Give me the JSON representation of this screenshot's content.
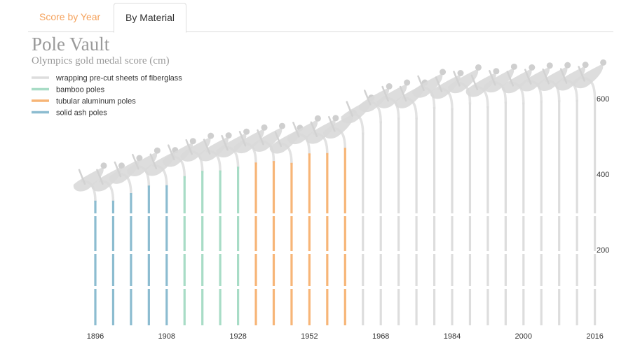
{
  "tabs": [
    {
      "label": "Score by Year",
      "active": false,
      "color": "#f5a25c"
    },
    {
      "label": "By Material",
      "active": true
    }
  ],
  "chart_data": {
    "type": "bar",
    "title": "Pole Vault",
    "subtitle": "Olympics gold medal score (cm)",
    "ylim": [
      0,
      650
    ],
    "yticks": [
      200,
      400,
      600
    ],
    "xtick_labels": [
      "1896",
      "1908",
      "1928",
      "1952",
      "1968",
      "1984",
      "2000",
      "2016"
    ],
    "legend": [
      {
        "label": "wrapping pre-cut sheets of fiberglass",
        "material": "fiberglass",
        "color": "#dddddd"
      },
      {
        "label": "bamboo poles",
        "material": "bamboo",
        "color": "#a8dcc6"
      },
      {
        "label": "tubular aluminum poles",
        "material": "aluminum",
        "color": "#f7b577"
      },
      {
        "label": "solid ash poles",
        "material": "ash",
        "color": "#8cbcd0"
      }
    ],
    "series": [
      {
        "year": 1896,
        "value": 330,
        "material": "ash"
      },
      {
        "year": 1900,
        "value": 330,
        "material": "ash"
      },
      {
        "year": 1904,
        "value": 350,
        "material": "ash"
      },
      {
        "year": 1906,
        "value": 370,
        "material": "ash"
      },
      {
        "year": 1908,
        "value": 371,
        "material": "ash"
      },
      {
        "year": 1912,
        "value": 395,
        "material": "bamboo"
      },
      {
        "year": 1920,
        "value": 409,
        "material": "bamboo"
      },
      {
        "year": 1924,
        "value": 410,
        "material": "bamboo"
      },
      {
        "year": 1928,
        "value": 420,
        "material": "bamboo"
      },
      {
        "year": 1932,
        "value": 431,
        "material": "aluminum"
      },
      {
        "year": 1936,
        "value": 435,
        "material": "aluminum"
      },
      {
        "year": 1948,
        "value": 430,
        "material": "aluminum"
      },
      {
        "year": 1952,
        "value": 455,
        "material": "aluminum"
      },
      {
        "year": 1956,
        "value": 456,
        "material": "aluminum"
      },
      {
        "year": 1960,
        "value": 470,
        "material": "aluminum"
      },
      {
        "year": 1964,
        "value": 510,
        "material": "fiberglass"
      },
      {
        "year": 1968,
        "value": 540,
        "material": "fiberglass"
      },
      {
        "year": 1972,
        "value": 550,
        "material": "fiberglass"
      },
      {
        "year": 1976,
        "value": 550,
        "material": "fiberglass"
      },
      {
        "year": 1980,
        "value": 578,
        "material": "fiberglass"
      },
      {
        "year": 1984,
        "value": 575,
        "material": "fiberglass"
      },
      {
        "year": 1988,
        "value": 590,
        "material": "fiberglass"
      },
      {
        "year": 1992,
        "value": 580,
        "material": "fiberglass"
      },
      {
        "year": 1996,
        "value": 592,
        "material": "fiberglass"
      },
      {
        "year": 2000,
        "value": 590,
        "material": "fiberglass"
      },
      {
        "year": 2004,
        "value": 595,
        "material": "fiberglass"
      },
      {
        "year": 2008,
        "value": 596,
        "material": "fiberglass"
      },
      {
        "year": 2012,
        "value": 597,
        "material": "fiberglass"
      },
      {
        "year": 2016,
        "value": 603,
        "material": "fiberglass"
      }
    ]
  }
}
